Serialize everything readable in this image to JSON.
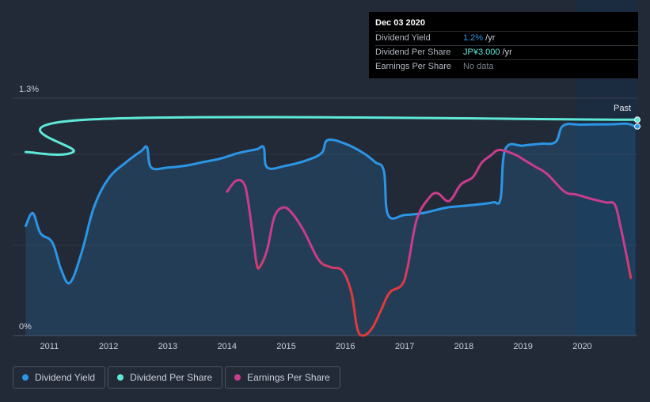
{
  "chart_data": {
    "type": "line",
    "y_labels": {
      "top": "1.3%",
      "bottom": "0%"
    },
    "past_label": "Past",
    "x_ticks": [
      "2011",
      "2012",
      "2013",
      "2014",
      "2015",
      "2016",
      "2017",
      "2018",
      "2019",
      "2020"
    ],
    "tick_years": [
      2011,
      2012,
      2013,
      2014,
      2015,
      2016,
      2017,
      2018,
      2019,
      2020
    ],
    "x_range": [
      2010.38,
      2020.93
    ],
    "past_region_start": 2019.91,
    "series": [
      {
        "name": "Dividend Yield",
        "color": "#2b95e6",
        "fill": true,
        "unit": "%",
        "y_range": [
          0,
          1.3
        ],
        "points": [
          [
            2010.6,
            0.6
          ],
          [
            2010.72,
            0.67
          ],
          [
            2010.85,
            0.56
          ],
          [
            2011.05,
            0.51
          ],
          [
            2011.2,
            0.36
          ],
          [
            2011.35,
            0.29
          ],
          [
            2011.55,
            0.46
          ],
          [
            2011.75,
            0.7
          ],
          [
            2012.0,
            0.86
          ],
          [
            2012.3,
            0.95
          ],
          [
            2012.55,
            1.01
          ],
          [
            2012.65,
            1.03
          ],
          [
            2012.72,
            0.92
          ],
          [
            2013.0,
            0.92
          ],
          [
            2013.3,
            0.93
          ],
          [
            2013.6,
            0.95
          ],
          [
            2013.9,
            0.97
          ],
          [
            2014.2,
            1.0
          ],
          [
            2014.5,
            1.02
          ],
          [
            2014.62,
            1.03
          ],
          [
            2014.68,
            0.92
          ],
          [
            2015.0,
            0.93
          ],
          [
            2015.35,
            0.96
          ],
          [
            2015.6,
            1.0
          ],
          [
            2015.7,
            1.07
          ],
          [
            2016.0,
            1.05
          ],
          [
            2016.3,
            1.0
          ],
          [
            2016.5,
            0.95
          ],
          [
            2016.65,
            0.9
          ],
          [
            2016.72,
            0.66
          ],
          [
            2017.0,
            0.66
          ],
          [
            2017.3,
            0.67
          ],
          [
            2017.7,
            0.7
          ],
          [
            2018.0,
            0.71
          ],
          [
            2018.3,
            0.72
          ],
          [
            2018.5,
            0.73
          ],
          [
            2018.62,
            0.75
          ],
          [
            2018.7,
            1.02
          ],
          [
            2019.0,
            1.04
          ],
          [
            2019.3,
            1.05
          ],
          [
            2019.55,
            1.06
          ],
          [
            2019.68,
            1.15
          ],
          [
            2020.0,
            1.155
          ],
          [
            2020.5,
            1.157
          ],
          [
            2020.75,
            1.16
          ],
          [
            2020.9,
            1.145
          ]
        ]
      },
      {
        "name": "Dividend Per Share",
        "color": "#5ee8d8",
        "fill": false,
        "unit": "JP¥",
        "y_range": [
          0,
          3.3
        ],
        "points": [
          [
            2010.6,
            2.55
          ],
          [
            2011.4,
            2.55
          ],
          [
            2011.62,
            3.0
          ],
          [
            2020.93,
            3.0
          ]
        ]
      },
      {
        "name": "Earnings Per Share",
        "color": "#c83d8c",
        "color_end": "#e03a3a",
        "fill": false,
        "unit": "JP¥",
        "y_range": [
          0,
          3.3
        ],
        "points": [
          [
            2014.0,
            2.0
          ],
          [
            2014.15,
            2.15
          ],
          [
            2014.28,
            2.12
          ],
          [
            2014.35,
            1.9
          ],
          [
            2014.45,
            1.3
          ],
          [
            2014.5,
            1.0
          ],
          [
            2014.55,
            0.95
          ],
          [
            2014.68,
            1.2
          ],
          [
            2014.8,
            1.65
          ],
          [
            2014.95,
            1.78
          ],
          [
            2015.1,
            1.7
          ],
          [
            2015.3,
            1.45
          ],
          [
            2015.55,
            1.05
          ],
          [
            2015.75,
            0.95
          ],
          [
            2015.95,
            0.9
          ],
          [
            2016.1,
            0.6
          ],
          [
            2016.2,
            0.1
          ],
          [
            2016.3,
            0.0
          ],
          [
            2016.45,
            0.1
          ],
          [
            2016.6,
            0.35
          ],
          [
            2016.75,
            0.6
          ],
          [
            2016.95,
            0.7
          ],
          [
            2017.05,
            0.95
          ],
          [
            2017.2,
            1.6
          ],
          [
            2017.4,
            1.9
          ],
          [
            2017.55,
            1.98
          ],
          [
            2017.75,
            1.87
          ],
          [
            2017.95,
            2.1
          ],
          [
            2018.15,
            2.2
          ],
          [
            2018.3,
            2.4
          ],
          [
            2018.45,
            2.5
          ],
          [
            2018.6,
            2.58
          ],
          [
            2018.85,
            2.52
          ],
          [
            2019.0,
            2.45
          ],
          [
            2019.2,
            2.35
          ],
          [
            2019.4,
            2.25
          ],
          [
            2019.7,
            2.0
          ],
          [
            2019.9,
            1.96
          ],
          [
            2020.15,
            1.9
          ],
          [
            2020.4,
            1.85
          ],
          [
            2020.55,
            1.82
          ],
          [
            2020.65,
            1.5
          ],
          [
            2020.75,
            1.1
          ],
          [
            2020.82,
            0.8
          ]
        ]
      }
    ]
  },
  "tooltip": {
    "date": "Dec 03 2020",
    "rows": [
      {
        "label": "Dividend Yield",
        "value": "1.2%",
        "suffix": " /yr",
        "color": "#2b95e6"
      },
      {
        "label": "Dividend Per Share",
        "value": "JP¥3.000",
        "suffix": " /yr",
        "color": "#5ee8d8"
      },
      {
        "label": "Earnings Per Share",
        "value": "No data",
        "suffix": "",
        "color": "#7a808c"
      }
    ]
  },
  "legend": [
    {
      "label": "Dividend Yield",
      "color": "#2b95e6"
    },
    {
      "label": "Dividend Per Share",
      "color": "#5ee8d8"
    },
    {
      "label": "Earnings Per Share",
      "color": "#c83d8c"
    }
  ]
}
